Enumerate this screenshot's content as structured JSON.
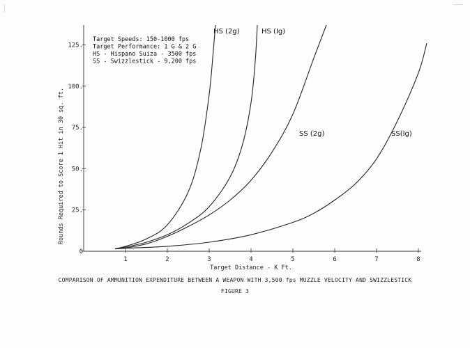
{
  "chart_data": {
    "type": "line",
    "xlabel": "Target Distance - K Ft.",
    "ylabel": "Rounds Required to Score 1 Hit in 30 sq. ft.",
    "xlim": [
      0,
      8
    ],
    "ylim": [
      0,
      137
    ],
    "x_ticks": [
      1,
      2,
      3,
      4,
      5,
      6,
      7,
      8
    ],
    "y_ticks": [
      0,
      25,
      50,
      75,
      100,
      125
    ],
    "y_tick_labels": [
      "0",
      "25.",
      "50.",
      "75.",
      "100.",
      "125."
    ],
    "grid": false,
    "legend_position": "top-left",
    "legend": [
      "Target Speeds: 150-1000 fps",
      "Target Performance: 1 G & 2 G",
      "HS - Hispano Suiza - 3500 fps",
      "SS - Swizzlestick - 9,200 fps"
    ],
    "series": [
      {
        "name": "HS (2g)",
        "label_anchor": [
          3.1,
          132
        ],
        "x": [
          0.75,
          1.0,
          1.5,
          2.0,
          2.5,
          2.8,
          3.0,
          3.1,
          3.15
        ],
        "y": [
          1.5,
          3,
          7.5,
          16,
          36,
          62,
          95,
          122,
          137
        ]
      },
      {
        "name": "HS (Ig)",
        "label_anchor": [
          4.25,
          132
        ],
        "x": [
          0.75,
          1.0,
          1.5,
          2.0,
          2.5,
          3.0,
          3.5,
          3.8,
          4.0,
          4.1,
          4.15
        ],
        "y": [
          1.5,
          2.5,
          5.5,
          10,
          17,
          27,
          45,
          65,
          90,
          115,
          137
        ]
      },
      {
        "name": "SS (2g)",
        "label_anchor": [
          5.15,
          70
        ],
        "x": [
          0.75,
          1.0,
          1.5,
          2.0,
          2.5,
          3.0,
          3.5,
          4.0,
          4.5,
          5.0,
          5.5,
          5.8
        ],
        "y": [
          1.5,
          2,
          4.5,
          9,
          15,
          22,
          31,
          43,
          60,
          83,
          117,
          137
        ]
      },
      {
        "name": "SS(Ig)",
        "label_anchor": [
          7.35,
          70
        ],
        "x": [
          0.75,
          1.0,
          2.0,
          3.0,
          4.0,
          5.0,
          5.5,
          6.0,
          6.5,
          7.0,
          7.5,
          8.0,
          8.2
        ],
        "y": [
          1.5,
          1.8,
          3,
          5.5,
          10,
          17.5,
          23,
          31,
          41,
          56,
          79,
          108,
          126
        ]
      }
    ]
  },
  "caption": {
    "line1": "COMPARISON OF AMMUNITION EXPENDITURE BETWEEN A WEAPON WITH 3,500 fps MUZZLE VELOCITY AND SWIZZLESTICK",
    "line2": "FIGURE 3"
  }
}
